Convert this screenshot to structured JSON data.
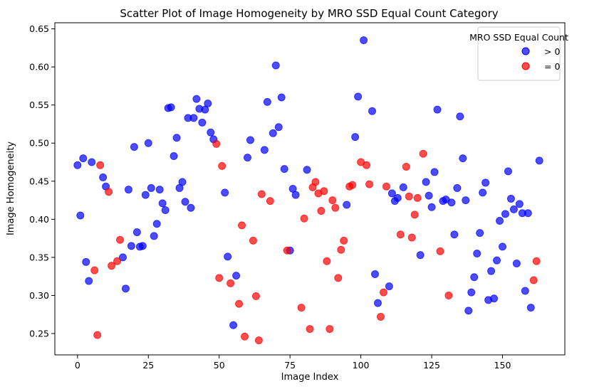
{
  "chart_data": {
    "type": "scatter",
    "title": "Scatter Plot of Image Homogeneity by MRO SSD Equal Count Category",
    "xlabel": "Image Index",
    "ylabel": "Image Homogeneity",
    "xlim": [
      -8,
      172
    ],
    "ylim": [
      0.222,
      0.658
    ],
    "xticks": [
      0,
      25,
      50,
      75,
      100,
      125,
      150
    ],
    "yticks": [
      0.25,
      0.3,
      0.35,
      0.4,
      0.45,
      0.5,
      0.55,
      0.6,
      0.65
    ],
    "grid": false,
    "legend": {
      "title": "MRO SSD Equal Count",
      "placement": "top-right"
    },
    "colors": {
      "gt0": "#0000ff",
      "eq0": "#ff0000"
    },
    "series": [
      {
        "name": "> 0",
        "color": "#0000ff",
        "x": [
          0,
          1,
          2,
          3,
          4,
          5,
          9,
          10,
          16,
          17,
          18,
          19,
          20,
          21,
          22,
          23,
          24,
          25,
          26,
          27,
          28,
          29,
          30,
          31,
          32,
          33,
          34,
          35,
          36,
          37,
          38,
          39,
          40,
          41,
          42,
          43,
          44,
          45,
          46,
          47,
          48,
          52,
          53,
          55,
          56,
          60,
          61,
          66,
          67,
          69,
          70,
          71,
          72,
          73,
          75,
          76,
          77,
          81,
          95,
          98,
          99,
          101,
          104,
          105,
          106,
          110,
          111,
          112,
          113,
          115,
          121,
          123,
          124,
          125,
          126,
          127,
          129,
          130,
          132,
          133,
          134,
          135,
          136,
          137,
          138,
          139,
          140,
          141,
          142,
          143,
          144,
          145,
          146,
          147,
          148,
          149,
          150,
          151,
          152,
          153,
          154,
          155,
          156,
          157,
          158,
          159,
          160,
          163
        ],
        "y": [
          0.471,
          0.405,
          0.48,
          0.344,
          0.319,
          0.475,
          0.455,
          0.443,
          0.35,
          0.309,
          0.439,
          0.365,
          0.495,
          0.383,
          0.364,
          0.365,
          0.432,
          0.5,
          0.441,
          0.378,
          0.394,
          0.439,
          0.421,
          0.412,
          0.546,
          0.547,
          0.483,
          0.507,
          0.441,
          0.449,
          0.423,
          0.533,
          0.415,
          0.533,
          0.558,
          0.545,
          0.527,
          0.544,
          0.552,
          0.514,
          0.505,
          0.435,
          0.351,
          0.261,
          0.326,
          0.481,
          0.504,
          0.491,
          0.554,
          0.513,
          0.602,
          0.521,
          0.56,
          0.466,
          0.359,
          0.44,
          0.432,
          0.465,
          0.419,
          0.508,
          0.561,
          0.635,
          0.542,
          0.328,
          0.29,
          0.312,
          0.434,
          0.424,
          0.428,
          0.442,
          0.353,
          0.449,
          0.431,
          0.416,
          0.462,
          0.544,
          0.424,
          0.426,
          0.422,
          0.38,
          0.441,
          0.535,
          0.48,
          0.425,
          0.28,
          0.304,
          0.324,
          0.355,
          0.382,
          0.435,
          0.448,
          0.294,
          0.332,
          0.296,
          0.346,
          0.398,
          0.364,
          0.407,
          0.463,
          0.427,
          0.413,
          0.342,
          0.42,
          0.408,
          0.306,
          0.408,
          0.284,
          0.477
        ]
      },
      {
        "name": "= 0",
        "color": "#ff0000",
        "x": [
          6,
          7,
          8,
          11,
          12,
          14,
          15,
          49,
          50,
          51,
          54,
          57,
          58,
          59,
          62,
          63,
          64,
          65,
          68,
          74,
          79,
          80,
          82,
          83,
          84,
          85,
          86,
          87,
          88,
          89,
          90,
          91,
          92,
          93,
          94,
          96,
          97,
          100,
          102,
          103,
          107,
          108,
          109,
          114,
          116,
          117,
          118,
          119,
          120,
          122,
          128,
          131,
          161,
          162
        ],
        "y": [
          0.333,
          0.248,
          0.471,
          0.436,
          0.339,
          0.345,
          0.373,
          0.499,
          0.323,
          0.47,
          0.316,
          0.289,
          0.392,
          0.246,
          0.372,
          0.299,
          0.241,
          0.433,
          0.424,
          0.359,
          0.284,
          0.401,
          0.256,
          0.442,
          0.449,
          0.434,
          0.411,
          0.437,
          0.345,
          0.256,
          0.425,
          0.415,
          0.323,
          0.36,
          0.372,
          0.443,
          0.445,
          0.475,
          0.471,
          0.446,
          0.272,
          0.304,
          0.443,
          0.38,
          0.469,
          0.43,
          0.376,
          0.406,
          0.428,
          0.486,
          0.358,
          0.3,
          0.32,
          0.345
        ]
      }
    ]
  }
}
